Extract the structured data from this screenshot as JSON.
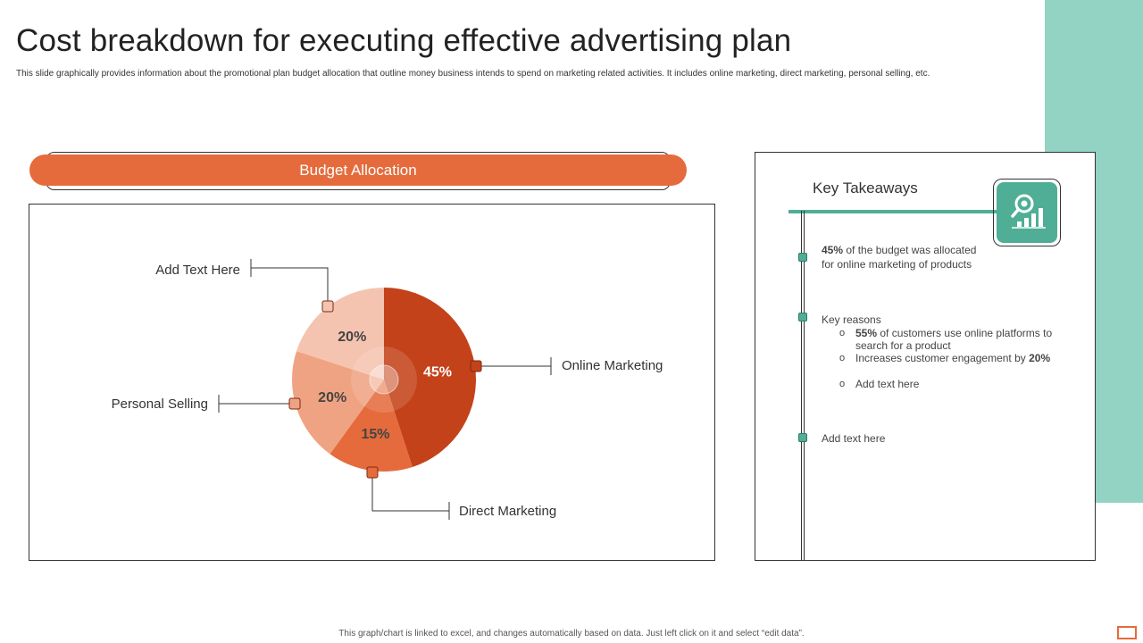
{
  "slide": {
    "title": "Cost breakdown for executing effective advertising plan",
    "subtitle": "This slide graphically provides information about the promotional plan budget allocation that outline money business intends to spend on marketing related activities. It includes online marketing, direct marketing, personal selling, etc.",
    "footer": "This graph/chart is linked to excel, and changes automatically based on data. Just left click on it and select “edit data”."
  },
  "banner": {
    "label": "Budget Allocation"
  },
  "chart_data": {
    "type": "pie",
    "title": "",
    "slices": [
      {
        "label": "Online Marketing",
        "value": 45,
        "display": "45%",
        "color": "#c4421a"
      },
      {
        "label": "Direct Marketing",
        "value": 15,
        "display": "15%",
        "color": "#e56b3c"
      },
      {
        "label": "Personal Selling",
        "value": 20,
        "display": "20%",
        "color": "#f0a383"
      },
      {
        "label": "Add Text Here",
        "value": 20,
        "display": "20%",
        "color": "#f5c4b0"
      }
    ]
  },
  "takeaways": {
    "title": "Key Takeaways",
    "icon": "magnifier-chart-icon",
    "item1": {
      "bold": "45%",
      "text": " of the budget was allocated",
      "line2": "for online marketing of products"
    },
    "item2": {
      "heading": "Key reasons",
      "bullet": "o",
      "sub1": {
        "bold": "55%",
        "text": " of customers use online platforms to search for a product"
      },
      "sub2": {
        "text": "Increases customer engagement by ",
        "bold": "20%"
      },
      "sub3": {
        "text": "Add text here"
      }
    },
    "item3": {
      "text": "Add text here"
    }
  },
  "colors": {
    "accent": "#e56b3c",
    "teal": "#4fae95",
    "strip": "#93d3c3"
  }
}
